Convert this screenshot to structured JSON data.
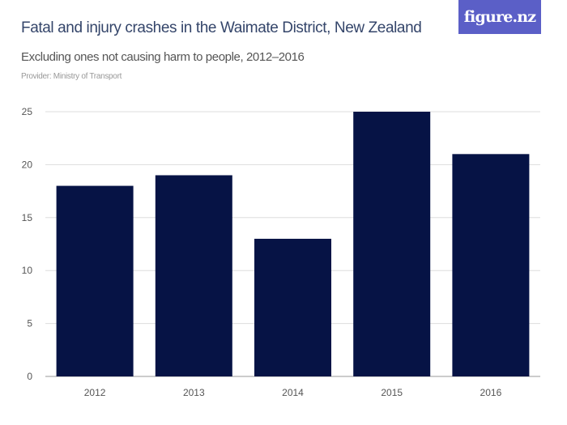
{
  "header": {
    "title": "Fatal and injury crashes in the Waimate District, New Zealand",
    "subtitle": "Excluding ones not causing harm to people, 2012–2016",
    "provider": "Provider: Ministry of Transport",
    "logo": "figure.nz"
  },
  "colors": {
    "bar": "#061345",
    "logo_bg": "#5b5fc7",
    "grid": "#dddddd"
  },
  "chart_data": {
    "type": "bar",
    "categories": [
      "2012",
      "2013",
      "2014",
      "2015",
      "2016"
    ],
    "values": [
      18,
      19,
      13,
      25,
      21
    ],
    "title": "Fatal and injury crashes in the Waimate District, New Zealand",
    "xlabel": "",
    "ylabel": "",
    "ylim": [
      0,
      25
    ],
    "yticks": [
      0,
      5,
      10,
      15,
      20,
      25
    ],
    "grid": true
  }
}
